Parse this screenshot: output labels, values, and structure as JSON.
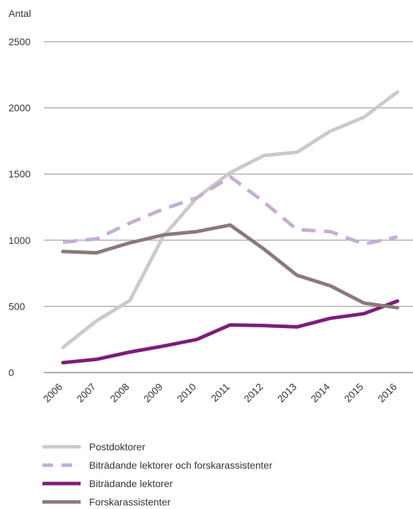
{
  "chart_data": {
    "type": "line",
    "ylabel": "Antal",
    "ylim": [
      0,
      2500
    ],
    "yticks": [
      0,
      500,
      1000,
      1500,
      2000,
      2500
    ],
    "ytick_labels": [
      "0",
      "500",
      "1000",
      "1500",
      "2000",
      "2500"
    ],
    "categories": [
      "2006",
      "2007",
      "2008",
      "2009",
      "2010",
      "2011",
      "2012",
      "2013",
      "2014",
      "2015",
      "2016"
    ],
    "grid": "horizontal",
    "legend_position": "bottom",
    "series": [
      {
        "name": "Postdoktorer",
        "color": "#cfc8c8",
        "dash": "solid",
        "values": [
          190,
          390,
          545,
          1030,
          1320,
          1510,
          1640,
          1665,
          1825,
          1930,
          2120
        ]
      },
      {
        "name": "Biträdande lektorer och forskarassistenter",
        "color": "#c6aed3",
        "dash": "dashed",
        "values": [
          985,
          1010,
          1130,
          1235,
          1320,
          1480,
          1290,
          1080,
          1065,
          970,
          1025
        ]
      },
      {
        "name": "Biträdande lektorer",
        "color": "#7b1f78",
        "dash": "solid",
        "values": [
          75,
          100,
          155,
          200,
          250,
          360,
          355,
          345,
          410,
          445,
          540
        ]
      },
      {
        "name": "Forskarassistenter",
        "color": "#8a7a78",
        "dash": "solid",
        "values": [
          915,
          905,
          980,
          1040,
          1065,
          1115,
          935,
          735,
          655,
          525,
          490
        ]
      }
    ]
  }
}
